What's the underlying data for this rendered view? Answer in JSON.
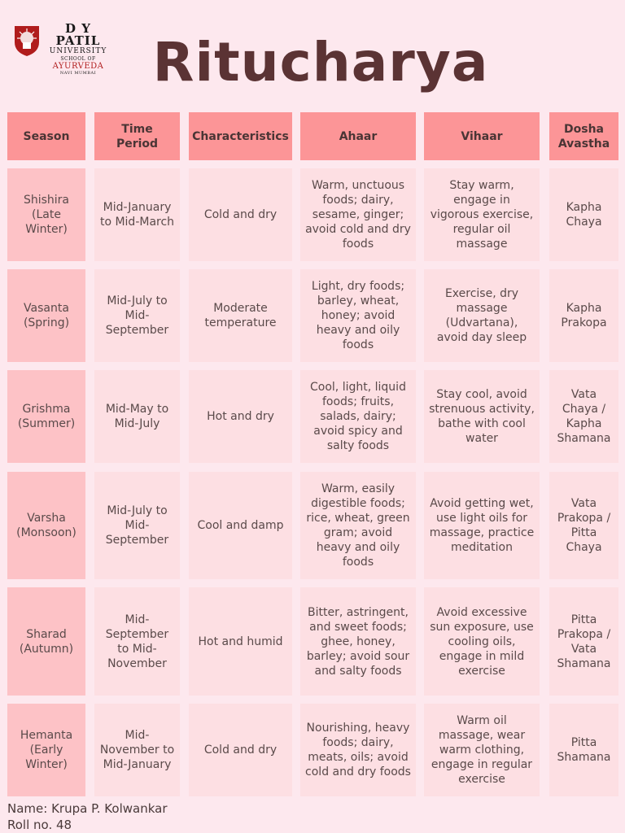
{
  "logo": {
    "name": "D Y PATIL",
    "university": "UNIVERSITY",
    "school": "SCHOOL OF",
    "ayurveda": "AYURVEDA",
    "location": "NAVI MUMBAI"
  },
  "title": "Ritucharya",
  "table": {
    "headers": [
      "Season",
      "Time Period",
      "Characteristics",
      "Ahaar",
      "Vihaar",
      "Dosha Avastha"
    ],
    "rows": [
      [
        "Shishira (Late Winter)",
        "Mid-January to Mid-March",
        "Cold and dry",
        "Warm, unctuous foods; dairy, sesame, ginger; avoid cold and dry foods",
        "Stay warm, engage in vigorous exercise, regular oil massage",
        "Kapha Chaya"
      ],
      [
        "Vasanta (Spring)",
        "Mid-July to Mid-September",
        "Moderate temperature",
        "Light, dry foods; barley, wheat, honey; avoid heavy and oily foods",
        "Exercise, dry massage (Udvartana), avoid day sleep",
        "Kapha Prakopa"
      ],
      [
        "Grishma (Summer)",
        "Mid-May to Mid-July",
        "Hot and dry",
        "Cool, light, liquid foods; fruits, salads, dairy; avoid spicy and salty foods",
        "Stay cool, avoid strenuous activity, bathe with cool water",
        "Vata Chaya / Kapha Shamana"
      ],
      [
        "Varsha (Monsoon)",
        "Mid-July to Mid-September",
        "Cool and damp",
        "Warm, easily digestible foods; rice, wheat, green gram; avoid heavy and oily foods",
        "Avoid getting wet, use light oils for massage, practice meditation",
        "Vata Prakopa / Pitta Chaya"
      ],
      [
        "Sharad (Autumn)",
        "Mid-September to Mid-November",
        "Hot and humid",
        "Bitter, astringent, and sweet foods; ghee, honey, barley; avoid sour and salty foods",
        "Avoid excessive sun exposure, use cooling oils, engage in mild exercise",
        "Pitta Prakopa /  Vata Shamana"
      ],
      [
        "Hemanta (Early Winter)",
        "Mid-November to Mid-January",
        "Cold and dry",
        "Nourishing, heavy foods; dairy, meats, oils; avoid cold and dry foods",
        "Warm oil massage, wear warm clothing, engage in regular exercise",
        "Pitta Shamana"
      ]
    ]
  },
  "footer": {
    "name": "Name: Krupa P. Kolwankar",
    "roll": "Roll no. 48"
  },
  "colors": {
    "header": "#fc9597",
    "first_column": "#fdc2c6",
    "body": "#fddfe3",
    "title": "#5b3334",
    "background": "#fde8ee"
  }
}
